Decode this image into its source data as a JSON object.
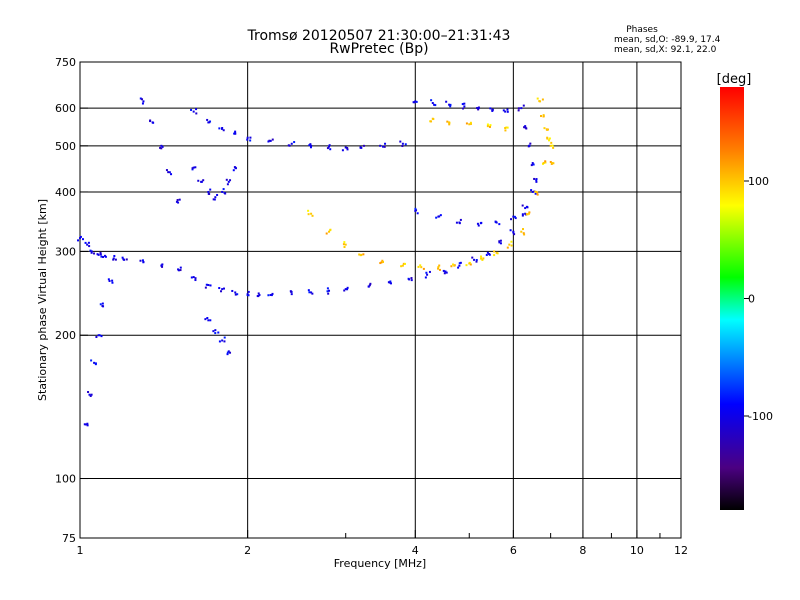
{
  "chart_data": {
    "type": "scatter",
    "title": "Tromsø 20120507 21:30:00–21:31:43",
    "subtitle": "RwPretec (Bp)",
    "xlabel": "Frequency [MHz]",
    "ylabel": "Stationary phase Virtual Height [km]",
    "x_scale": "log",
    "y_scale": "log",
    "xlim": [
      1,
      12
    ],
    "ylim": [
      75,
      750
    ],
    "x_ticks": [
      1,
      2,
      4,
      6,
      8,
      10,
      12
    ],
    "x_tick_labels": [
      "1",
      "2",
      "4",
      "6",
      "8",
      "10",
      "12"
    ],
    "x_minor_ticks": [
      3,
      5,
      7,
      9,
      11
    ],
    "y_ticks": [
      75,
      100,
      200,
      300,
      400,
      500,
      600,
      750
    ],
    "y_tick_labels": [
      "75",
      "100",
      "200",
      "300",
      "400",
      "500",
      "600",
      "750"
    ],
    "y_gridlines": [
      100,
      200,
      300,
      400,
      500,
      600
    ],
    "x_gridlines": [
      2,
      4,
      6,
      8,
      10
    ],
    "grid": true,
    "phase_stats": {
      "title": "Phases",
      "line_o": "mean, sd,O: -89.9, 17.4",
      "line_x": "mean, sd,X:  92.1, 22.0"
    },
    "colorbar": {
      "label": "[deg]",
      "range": [
        -180,
        180
      ],
      "ticks": [
        100,
        0,
        -100
      ],
      "tick_labels": [
        "100",
        "0",
        "-100"
      ],
      "colormap": "rainbow"
    },
    "series": [
      {
        "name": "O",
        "color_phase": -100,
        "traces": [
          {
            "f": [
              1.0,
              1.03,
              1.05,
              1.08,
              1.1,
              1.15,
              1.2,
              1.3,
              1.4,
              1.5,
              1.6,
              1.7,
              1.8,
              1.9,
              2.0,
              2.1,
              2.2,
              2.4,
              2.6,
              2.8,
              3.0,
              3.3,
              3.6,
              3.9,
              4.2,
              4.5,
              4.8,
              5.1,
              5.4,
              5.7,
              6.0,
              6.3,
              6.5
            ],
            "h": [
              320,
              310,
              300,
              295,
              292,
              290,
              288,
              285,
              280,
              275,
              265,
              255,
              250,
              246,
              244,
              243,
              243,
              244,
              246,
              248,
              250,
              253,
              258,
              262,
              268,
              273,
              280,
              288,
              298,
              312,
              330,
              360,
              400
            ]
          },
          {
            "f": [
              1.02,
              1.04,
              1.06,
              1.08,
              1.1,
              1.13
            ],
            "h": [
              130,
              150,
              175,
              200,
              230,
              260
            ]
          },
          {
            "f": [
              1.3,
              1.35,
              1.4,
              1.45,
              1.5
            ],
            "h": [
              620,
              560,
              500,
              440,
              380
            ]
          },
          {
            "f": [
              1.6,
              1.7,
              1.8,
              1.9,
              2.0,
              2.2,
              2.4,
              2.6,
              2.8,
              3.0,
              3.2,
              3.5,
              3.8
            ],
            "h": [
              590,
              560,
              545,
              530,
              520,
              512,
              505,
              500,
              498,
              496,
              495,
              498,
              505
            ]
          },
          {
            "f": [
              1.6,
              1.65,
              1.7,
              1.75,
              1.8,
              1.85,
              1.9
            ],
            "h": [
              450,
              420,
              400,
              390,
              400,
              420,
              450
            ]
          },
          {
            "f": [
              1.7,
              1.75,
              1.8,
              1.85
            ],
            "h": [
              215,
              205,
              195,
              185
            ]
          },
          {
            "f": [
              4.0,
              4.4,
              4.8,
              5.2,
              5.6,
              6.0,
              6.3
            ],
            "h": [
              365,
              355,
              345,
              340,
              345,
              355,
              370
            ]
          },
          {
            "f": [
              4.0,
              4.3,
              4.6,
              4.9,
              5.2,
              5.5,
              5.8
            ],
            "h": [
              620,
              615,
              610,
              605,
              600,
              595,
              590
            ]
          },
          {
            "f": [
              6.2,
              6.3,
              6.4,
              6.5,
              6.6
            ],
            "h": [
              600,
              550,
              500,
              460,
              420
            ]
          }
        ]
      },
      {
        "name": "X",
        "color_phase": 100,
        "traces": [
          {
            "f": [
              2.6,
              2.8,
              3.0,
              3.2,
              3.5,
              3.8,
              4.1,
              4.4,
              4.7,
              5.0,
              5.3,
              5.6,
              5.9,
              6.2,
              6.4,
              6.6,
              6.8,
              6.9
            ],
            "h": [
              360,
              330,
              310,
              295,
              285,
              280,
              278,
              278,
              280,
              283,
              290,
              298,
              310,
              330,
              360,
              400,
              460,
              520
            ]
          },
          {
            "f": [
              6.7,
              6.8,
              6.9,
              7.0,
              7.05
            ],
            "h": [
              620,
              580,
              540,
              500,
              460
            ]
          },
          {
            "f": [
              4.3,
              4.6,
              5.0,
              5.4,
              5.8
            ],
            "h": [
              570,
              560,
              555,
              550,
              545
            ]
          }
        ]
      }
    ]
  }
}
